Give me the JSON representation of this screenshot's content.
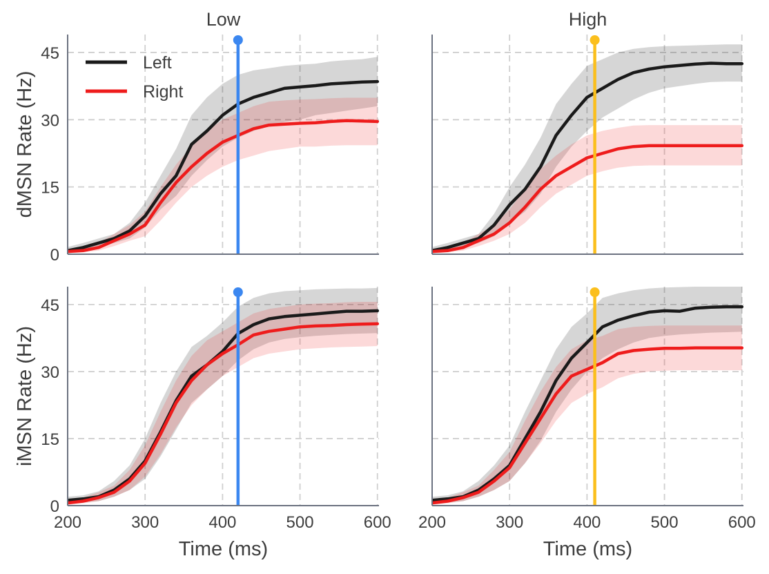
{
  "chart_data": {
    "type": "line",
    "layout": "2x2 grid, shared axes",
    "col_titles": [
      "Low",
      "High"
    ],
    "row_ylabels": [
      "dMSN Rate (Hz)",
      "iMSN Rate (Hz)"
    ],
    "xlabel": "Time (ms)",
    "xlim": [
      200,
      602
    ],
    "ylim": [
      0,
      49
    ],
    "xticks": [
      200,
      300,
      400,
      500,
      600
    ],
    "yticks": [
      0,
      15,
      30,
      45
    ],
    "grid": "dashed",
    "legend": {
      "placement": "top-left of first panel",
      "entries": [
        "Left",
        "Right"
      ]
    },
    "colors": {
      "left": "#1a1a1a",
      "right": "#ee1c1c",
      "low_marker": "#3b87f0",
      "high_marker": "#fbbf1d"
    },
    "panels": [
      {
        "row": 0,
        "col": 0,
        "title": "Low",
        "ylabel": "dMSN Rate (Hz)",
        "marker": {
          "x": 420,
          "color": "#3b87f0"
        },
        "series": [
          {
            "name": "Left",
            "color": "#1a1a1a",
            "x": [
              200,
              220,
              240,
              260,
              280,
              300,
              320,
              340,
              360,
              380,
              400,
              420,
              440,
              460,
              480,
              500,
              520,
              540,
              560,
              580,
              600
            ],
            "y": [
              0.8,
              1.5,
              2.5,
              3.5,
              5.2,
              8.5,
              13.5,
              17.5,
              24.5,
              27.5,
              31,
              33.5,
              35,
              36,
              37,
              37.3,
              37.6,
              38,
              38.2,
              38.4,
              38.5
            ],
            "lo": [
              0.2,
              0.8,
              1.5,
              2.5,
              3.5,
              6,
              10,
              13,
              17.5,
              21,
              24,
              26,
              27.5,
              28.5,
              29.5,
              30,
              31,
              31.5,
              32,
              32.5,
              33
            ],
            "hi": [
              1.6,
              2.5,
              3.5,
              4.5,
              7,
              11.5,
              17.5,
              23.5,
              31,
              35,
              38,
              40,
              41,
              41.5,
              42,
              42.3,
              42.5,
              43,
              43.3,
              43.5,
              44
            ]
          },
          {
            "name": "Right",
            "color": "#ee1c1c",
            "x": [
              200,
              220,
              240,
              260,
              280,
              300,
              320,
              340,
              360,
              380,
              400,
              420,
              440,
              460,
              480,
              500,
              520,
              540,
              560,
              580,
              600
            ],
            "y": [
              0.6,
              0.8,
              1.5,
              3,
              4.5,
              6.5,
              11.5,
              16,
              19.5,
              22.5,
              25,
              26.5,
              28,
              28.8,
              29,
              29.2,
              29.3,
              29.6,
              29.8,
              29.7,
              29.6
            ],
            "lo": [
              0.2,
              0.4,
              0.8,
              1.8,
              3,
              4,
              7.5,
              11.5,
              15,
              17.5,
              19.5,
              21,
              22,
              23,
              23.5,
              24,
              24,
              24.2,
              24.3,
              24.3,
              24.3
            ],
            "hi": [
              1.2,
              1.4,
              2.5,
              4.5,
              6.5,
              9.5,
              15,
              20,
              24,
              27.5,
              30,
              31.5,
              33,
              34,
              34.3,
              34.5,
              34.6,
              34.8,
              34.9,
              34.9,
              34.9
            ]
          }
        ]
      },
      {
        "row": 0,
        "col": 1,
        "title": "High",
        "ylabel": "",
        "marker": {
          "x": 410,
          "color": "#fbbf1d"
        },
        "series": [
          {
            "name": "Left",
            "color": "#1a1a1a",
            "x": [
              200,
              220,
              240,
              260,
              280,
              300,
              320,
              340,
              360,
              380,
              400,
              420,
              440,
              460,
              480,
              500,
              520,
              540,
              560,
              580,
              600
            ],
            "y": [
              0.8,
              1.5,
              2.5,
              3.5,
              6.5,
              11,
              14.5,
              19.5,
              26.5,
              31,
              35,
              37,
              39,
              40.5,
              41.3,
              41.8,
              42.1,
              42.4,
              42.6,
              42.5,
              42.5
            ],
            "lo": [
              0.2,
              0.8,
              1.5,
              2.5,
              4,
              7,
              9.5,
              13.5,
              19.5,
              24,
              27.5,
              30.5,
              32.5,
              34.5,
              36,
              37,
              37.5,
              38,
              38.4,
              38.5,
              38.5
            ],
            "hi": [
              1.6,
              2.5,
              3.5,
              4.5,
              9,
              15,
              20,
              26,
              33.5,
              38,
              42,
              43.5,
              45,
              45.8,
              46.2,
              46.4,
              46.5,
              46.6,
              46.7,
              46.8,
              46.8
            ]
          },
          {
            "name": "Right",
            "color": "#ee1c1c",
            "x": [
              200,
              220,
              240,
              260,
              280,
              300,
              320,
              340,
              360,
              380,
              400,
              420,
              440,
              460,
              480,
              500,
              520,
              540,
              560,
              580,
              600
            ],
            "y": [
              0.6,
              0.8,
              1.5,
              3,
              4.5,
              7,
              10.5,
              14.5,
              17.5,
              19.5,
              21.5,
              22.5,
              23.5,
              24,
              24.2,
              24.2,
              24.2,
              24.2,
              24.2,
              24.2,
              24.2
            ],
            "lo": [
              0.2,
              0.4,
              0.8,
              1.8,
              3,
              4.5,
              7,
              10.5,
              13.5,
              15.5,
              17.5,
              18.5,
              19.3,
              19.7,
              19.8,
              19.8,
              19.8,
              19.8,
              19.8,
              19.8,
              19.8
            ],
            "hi": [
              1.2,
              1.4,
              2.5,
              4.5,
              6.5,
              10,
              14.5,
              19,
              22,
              24.5,
              26.5,
              27.5,
              28.2,
              28.7,
              28.8,
              28.8,
              28.8,
              28.8,
              28.8,
              28.8,
              28.8
            ]
          }
        ]
      },
      {
        "row": 1,
        "col": 0,
        "title": "",
        "ylabel": "iMSN Rate (Hz)",
        "marker": {
          "x": 420,
          "color": "#3b87f0"
        },
        "series": [
          {
            "name": "Left",
            "color": "#1a1a1a",
            "x": [
              200,
              220,
              240,
              260,
              280,
              300,
              320,
              340,
              360,
              380,
              400,
              420,
              440,
              460,
              480,
              500,
              520,
              540,
              560,
              580,
              600
            ],
            "y": [
              1.2,
              1.5,
              2,
              3.5,
              6,
              10,
              16.5,
              23.5,
              29,
              31.5,
              34.5,
              38.5,
              40.5,
              41.8,
              42.3,
              42.6,
              42.9,
              43.2,
              43.5,
              43.5,
              43.6
            ],
            "lo": [
              0.4,
              0.7,
              1,
              2,
              3.5,
              6,
              11,
              17,
              23,
              26,
              29,
              32.5,
              35,
              36.5,
              37.3,
              37.7,
              38,
              38.2,
              38.4,
              38.5,
              38.6
            ],
            "hi": [
              2,
              2.3,
              3.2,
              5.5,
              9,
              15,
              23,
              30,
              35.5,
              38,
              41,
              44.5,
              46.5,
              47.5,
              48,
              48.2,
              48.4,
              48.5,
              48.6,
              48.6,
              48.7
            ]
          },
          {
            "name": "Right",
            "color": "#ee1c1c",
            "x": [
              200,
              220,
              240,
              260,
              280,
              300,
              320,
              340,
              360,
              380,
              400,
              420,
              440,
              460,
              480,
              500,
              520,
              540,
              560,
              580,
              600
            ],
            "y": [
              0.6,
              1,
              1.8,
              3,
              5.5,
              9.5,
              16,
              23,
              28,
              31.5,
              34,
              36,
              38.2,
              39,
              39.5,
              40,
              40.2,
              40.3,
              40.5,
              40.6,
              40.7
            ],
            "lo": [
              0.2,
              0.5,
              1,
              2,
              3.5,
              6.5,
              11.5,
              17.5,
              22.5,
              26,
              29,
              31,
              33,
              34,
              34.5,
              35,
              35.2,
              35.4,
              35.5,
              35.6,
              35.7
            ],
            "hi": [
              1.2,
              1.8,
              3,
              4.5,
              8,
              13.5,
              21,
              28,
              33.5,
              37,
              39,
              41,
              43,
              44,
              44.5,
              45,
              45.2,
              45.3,
              45.5,
              45.6,
              45.6
            ]
          }
        ]
      },
      {
        "row": 1,
        "col": 1,
        "title": "",
        "ylabel": "",
        "marker": {
          "x": 410,
          "color": "#fbbf1d"
        },
        "series": [
          {
            "name": "Left",
            "color": "#1a1a1a",
            "x": [
              200,
              220,
              240,
              260,
              280,
              300,
              320,
              340,
              360,
              380,
              400,
              420,
              440,
              460,
              480,
              500,
              520,
              540,
              560,
              580,
              600
            ],
            "y": [
              1.2,
              1.5,
              2,
              3.5,
              6,
              9,
              15,
              21,
              28,
              33,
              36.5,
              40,
              41.5,
              42.5,
              43.3,
              43.6,
              43.5,
              44.2,
              44.4,
              44.5,
              44.5
            ],
            "lo": [
              0.4,
              0.7,
              1,
              2,
              3.5,
              5.5,
              9.5,
              14.5,
              21,
              26,
              30,
              33,
              35,
              36.5,
              37.5,
              38,
              38.3,
              38.5,
              38.7,
              38.8,
              38.9
            ],
            "hi": [
              2,
              2.3,
              3.2,
              5.5,
              9,
              13.5,
              21,
              28,
              35,
              40,
              43,
              46.5,
              47.5,
              48.2,
              48.6,
              48.8,
              48.9,
              49,
              49,
              49,
              49
            ]
          },
          {
            "name": "Right",
            "color": "#ee1c1c",
            "x": [
              200,
              220,
              240,
              260,
              280,
              300,
              320,
              340,
              360,
              380,
              400,
              420,
              440,
              460,
              480,
              500,
              520,
              540,
              560,
              580,
              600
            ],
            "y": [
              0.6,
              1,
              1.8,
              3,
              5.5,
              8.5,
              14,
              19.5,
              25,
              29,
              30.5,
              32,
              34,
              34.7,
              35,
              35.2,
              35.2,
              35.3,
              35.3,
              35.3,
              35.3
            ],
            "lo": [
              0.2,
              0.5,
              1,
              2,
              3.5,
              5.5,
              9.5,
              14,
              19,
              23,
              25,
              26.5,
              28.5,
              29.5,
              30,
              30.2,
              30.3,
              30.3,
              30.3,
              30.3,
              30.3
            ],
            "hi": [
              1.2,
              1.8,
              3,
              4.5,
              8,
              12,
              19,
              25.5,
              31,
              35,
              37,
              38,
              39.5,
              40,
              40.2,
              40.3,
              40.3,
              40.3,
              40.3,
              40.3,
              40.3
            ]
          }
        ]
      }
    ]
  }
}
